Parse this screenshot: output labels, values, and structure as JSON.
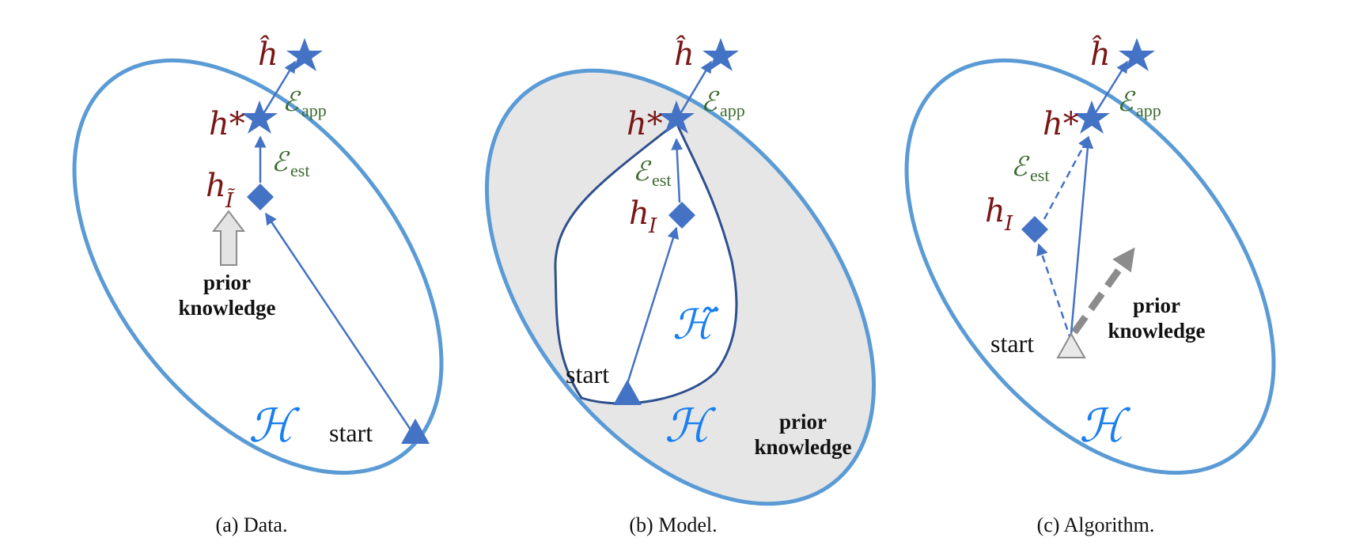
{
  "panels": [
    {
      "caption": "(a)  Data.",
      "labels": {
        "h_hat": "ĥ",
        "h_star": "h*",
        "h_node": "h",
        "h_node_sub": "Ĩ",
        "e_app": "ℰ",
        "e_app_sub": "app",
        "e_est": "ℰ",
        "e_est_sub": "est",
        "space": "ℋ",
        "start": "start",
        "prior_line1": "prior",
        "prior_line2": "knowledge"
      }
    },
    {
      "caption": "(b)  Model.",
      "labels": {
        "h_hat": "ĥ",
        "h_star": "h*",
        "h_node": "h",
        "h_node_sub": "I",
        "e_app": "ℰ",
        "e_app_sub": "app",
        "e_est": "ℰ",
        "e_est_sub": "est",
        "space": "ℋ",
        "subspace": "ℋ̃",
        "start": "start",
        "prior_line1": "prior",
        "prior_line2": "knowledge"
      }
    },
    {
      "caption": "(c)  Algorithm.",
      "labels": {
        "h_hat": "ĥ",
        "h_star": "h*",
        "h_node": "h",
        "h_node_sub": "I",
        "e_app": "ℰ",
        "e_app_sub": "app",
        "e_est": "ℰ",
        "e_est_sub": "est",
        "space": "ℋ",
        "start": "start",
        "prior_line1": "prior",
        "prior_line2": "knowledge"
      }
    }
  ],
  "colors": {
    "ellipse": "#5b9bd5",
    "node": "#4472c4",
    "dark_curve": "#2f4f8f",
    "shade": "#e6e6e6",
    "math_red": "#7a1616",
    "math_green": "#3a6b2e",
    "math_blue": "#1a7ff0",
    "gray_arrow": "#8c8c8c"
  }
}
